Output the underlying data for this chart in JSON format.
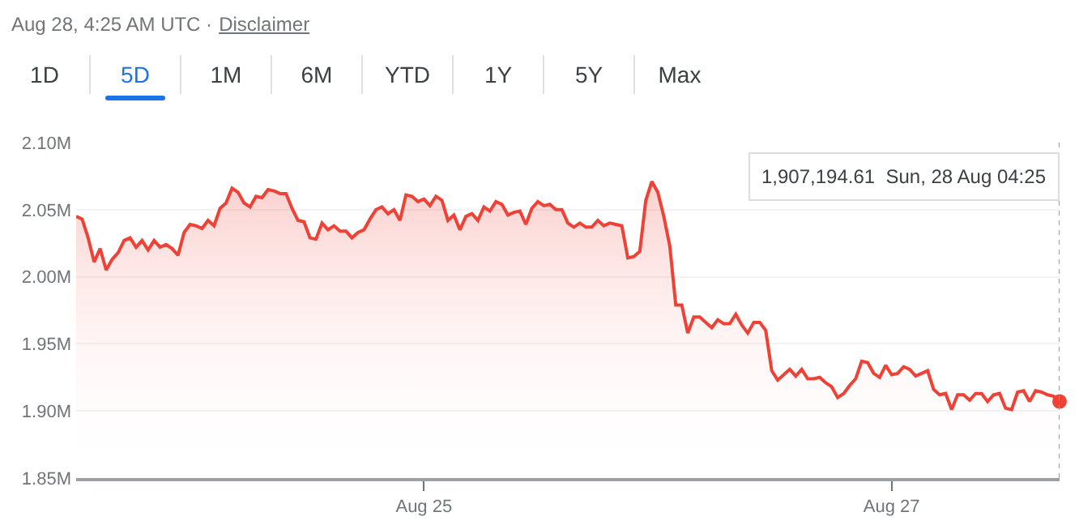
{
  "chart_data": {
    "type": "area",
    "color": "#ee4237",
    "categories": [
      null,
      null,
      null,
      null,
      null,
      null,
      null,
      null,
      null,
      null,
      null,
      null,
      null,
      null,
      null,
      null,
      null,
      null,
      null,
      null,
      null,
      null,
      null,
      null,
      null,
      null,
      null,
      null,
      null,
      null,
      null,
      null,
      null,
      null,
      null,
      null,
      null,
      null,
      null,
      null,
      null,
      null,
      null,
      null,
      null,
      null,
      null,
      null,
      null,
      null,
      null,
      null,
      null,
      null,
      null,
      null,
      null,
      null,
      "Aug 25",
      null,
      null,
      null,
      null,
      null,
      null,
      null,
      null,
      null,
      null,
      null,
      null,
      null,
      null,
      null,
      null,
      null,
      null,
      null,
      null,
      null,
      null,
      null,
      null,
      null,
      null,
      null,
      null,
      null,
      null,
      null,
      null,
      null,
      null,
      null,
      null,
      null,
      null,
      null,
      null,
      null,
      null,
      null,
      null,
      null,
      null,
      null,
      null,
      null,
      null,
      null,
      null,
      null,
      null,
      null,
      null,
      null,
      null,
      null,
      null,
      null,
      null,
      null,
      null,
      null,
      null,
      null,
      null,
      null,
      null,
      null,
      null,
      null,
      null,
      null,
      null,
      null,
      "Aug 27",
      null,
      null,
      null,
      null,
      null,
      null,
      null,
      null,
      null,
      null,
      null,
      null,
      null,
      null,
      null,
      null,
      null,
      null,
      null,
      null,
      null,
      null,
      null,
      null,
      null,
      null,
      null,
      null
    ],
    "values": [
      2.045,
      2.043,
      2.029,
      2.011,
      2.021,
      2.005,
      2.013,
      2.018,
      2.027,
      2.029,
      2.022,
      2.027,
      2.02,
      2.027,
      2.022,
      2.024,
      2.021,
      2.016,
      2.033,
      2.039,
      2.038,
      2.036,
      2.042,
      2.038,
      2.051,
      2.055,
      2.066,
      2.063,
      2.055,
      2.052,
      2.06,
      2.059,
      2.065,
      2.064,
      2.062,
      2.062,
      2.051,
      2.042,
      2.041,
      2.029,
      2.028,
      2.04,
      2.035,
      2.038,
      2.034,
      2.034,
      2.029,
      2.033,
      2.035,
      2.043,
      2.05,
      2.052,
      2.047,
      2.05,
      2.042,
      2.061,
      2.06,
      2.056,
      2.058,
      2.053,
      2.06,
      2.057,
      2.042,
      2.046,
      2.035,
      2.045,
      2.047,
      2.042,
      2.052,
      2.049,
      2.056,
      2.054,
      2.046,
      2.048,
      2.049,
      2.039,
      2.051,
      2.056,
      2.053,
      2.054,
      2.05,
      2.05,
      2.04,
      2.037,
      2.04,
      2.037,
      2.037,
      2.042,
      2.038,
      2.04,
      2.039,
      2.038,
      2.014,
      2.015,
      2.019,
      2.057,
      2.071,
      2.063,
      2.045,
      2.023,
      1.979,
      1.979,
      1.958,
      1.97,
      1.97,
      1.966,
      1.962,
      1.968,
      1.965,
      1.965,
      1.972,
      1.964,
      1.958,
      1.966,
      1.966,
      1.96,
      1.93,
      1.923,
      1.927,
      1.931,
      1.926,
      1.931,
      1.924,
      1.924,
      1.925,
      1.921,
      1.918,
      1.91,
      1.913,
      1.919,
      1.924,
      1.937,
      1.936,
      1.928,
      1.925,
      1.934,
      1.927,
      1.928,
      1.933,
      1.931,
      1.926,
      1.928,
      1.93,
      1.916,
      1.912,
      1.913,
      1.901,
      1.912,
      1.912,
      1.908,
      1.913,
      1.913,
      1.907,
      1.912,
      1.913,
      1.902,
      1.901,
      1.914,
      1.915,
      1.907,
      1.915,
      1.914,
      1.912,
      1.911,
      1.907
    ],
    "ylim": [
      1.85,
      2.1
    ],
    "yticks": [
      {
        "value": 1.85,
        "label": "1.85M"
      },
      {
        "value": 1.9,
        "label": "1.90M"
      },
      {
        "value": 1.95,
        "label": "1.95M"
      },
      {
        "value": 2.0,
        "label": "2.00M"
      },
      {
        "value": 2.05,
        "label": "2.05M"
      },
      {
        "value": 2.1,
        "label": "2.10M"
      }
    ],
    "grid": "y",
    "annotations": [
      "Aug 28, 4:25 AM UTC ·",
      "Disclaimer",
      "1D",
      "5D",
      "1M",
      "6M",
      "YTD",
      "1Y",
      "5Y",
      "Max",
      "1,907,194.61  Sun, 28 Aug 04:25"
    ]
  }
}
